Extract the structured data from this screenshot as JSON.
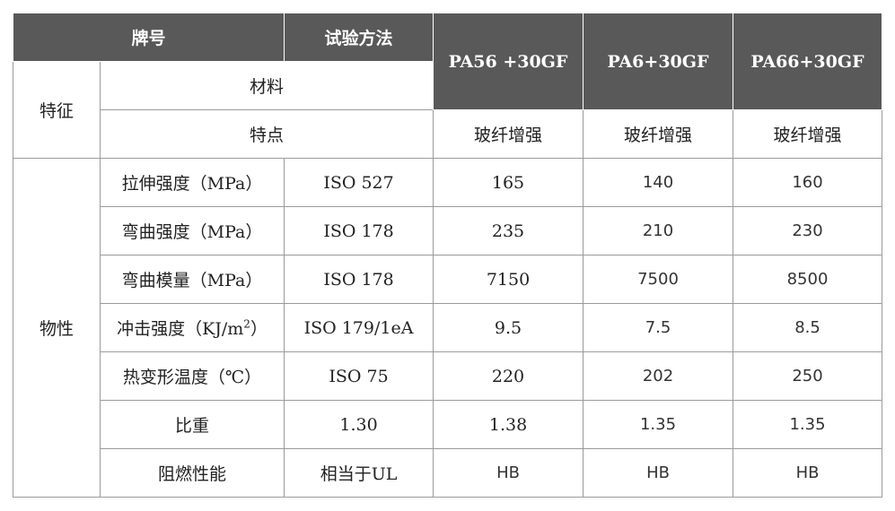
{
  "header": {
    "brand": "牌号",
    "method": "试验方法",
    "grades": [
      "PA56 +30GF",
      "PA6+30GF",
      "PA66+30GF"
    ]
  },
  "groups": [
    "特征",
    "物性"
  ],
  "material": "材料",
  "feature": {
    "label": "特点",
    "values": [
      "玻纤增强",
      "玻纤增强",
      "玻纤增强"
    ]
  },
  "rows": [
    {
      "property": "拉伸强度（MPa）",
      "method": "ISO 527",
      "values": [
        "165",
        "140",
        "160"
      ]
    },
    {
      "property": "弯曲强度（MPa）",
      "method": "ISO 178",
      "values": [
        "235",
        "210",
        "230"
      ]
    },
    {
      "property": "弯曲模量（MPa）",
      "method": "ISO 178",
      "values": [
        "7150",
        "7500",
        "8500"
      ]
    },
    {
      "property": {
        "text": "冲击强度（KJ/m",
        "sup": "2",
        "after": "）"
      },
      "method": "ISO 179/1eA",
      "values": [
        "9.5",
        "7.5",
        "8.5"
      ]
    },
    {
      "property": "热变形温度（℃）",
      "method": "ISO 75",
      "values": [
        "220",
        "202",
        "250"
      ]
    },
    {
      "property": "比重",
      "method": "1.30",
      "values": [
        "1.38",
        "1.35",
        "1.35"
      ]
    },
    {
      "property": "阻燃性能",
      "method": "相当于UL",
      "values": [
        "HB",
        "HB",
        "HB"
      ]
    }
  ]
}
